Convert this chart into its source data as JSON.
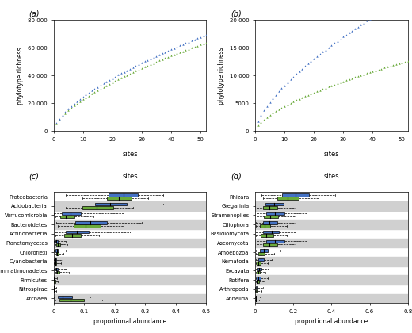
{
  "panel_a_label": "(a)",
  "panel_b_label": "(b)",
  "panel_c_label": "(c)",
  "panel_d_label": "(d)",
  "xlabel_sites": "sites",
  "xlabel_abundance": "proportional abundance",
  "ylabel_richness": "phylotype richness",
  "green_color": "#6aaa3a",
  "blue_color": "#4472c4",
  "gray_bg": "#d0d0d0",
  "bac_taxa": [
    "Proteobacteria",
    "Acidobacteria",
    "Verrucomicrobia",
    "Bacteroidetes",
    "Actinobacteria",
    "Planctomycetes",
    "Chloroflexi",
    "Cyanobacteria",
    "Gemmatimonadetes",
    "Firmicutes",
    "Nitrospirae",
    "Archaea"
  ],
  "euk_taxa": [
    "Rhizara",
    "Gregarinia",
    "Stramenopiles",
    "Ciliophora",
    "Basidiomycota",
    "Ascomycota",
    "Amoebozoa",
    "Nematoda",
    "Excavata",
    "Rotifera",
    "Arthropoda",
    "Annelida"
  ],
  "bac_green_wlo": [
    0.095,
    0.04,
    0.005,
    0.015,
    0.005,
    0.005,
    0.003,
    0.001,
    0.005,
    0.001,
    0.001,
    0.005
  ],
  "bac_green_q1": [
    0.175,
    0.095,
    0.022,
    0.065,
    0.035,
    0.01,
    0.008,
    0.003,
    0.008,
    0.002,
    0.001,
    0.02
  ],
  "bac_green_med": [
    0.215,
    0.14,
    0.04,
    0.105,
    0.06,
    0.015,
    0.012,
    0.005,
    0.012,
    0.003,
    0.002,
    0.055
  ],
  "bac_green_q3": [
    0.255,
    0.195,
    0.068,
    0.155,
    0.088,
    0.022,
    0.016,
    0.009,
    0.018,
    0.006,
    0.003,
    0.1
  ],
  "bac_green_whi": [
    0.31,
    0.26,
    0.13,
    0.23,
    0.15,
    0.045,
    0.032,
    0.025,
    0.05,
    0.015,
    0.008,
    0.16
  ],
  "bac_blue_wlo": [
    0.04,
    0.03,
    0.002,
    0.01,
    0.005,
    0.002,
    0.002,
    0.001,
    0.002,
    0.001,
    0.001,
    0.002
  ],
  "bac_blue_q1": [
    0.18,
    0.135,
    0.028,
    0.07,
    0.04,
    0.007,
    0.007,
    0.003,
    0.007,
    0.002,
    0.001,
    0.015
  ],
  "bac_blue_med": [
    0.23,
    0.185,
    0.055,
    0.12,
    0.075,
    0.01,
    0.011,
    0.005,
    0.01,
    0.002,
    0.002,
    0.03
  ],
  "bac_blue_q3": [
    0.275,
    0.24,
    0.09,
    0.175,
    0.115,
    0.015,
    0.015,
    0.008,
    0.015,
    0.004,
    0.003,
    0.06
  ],
  "bac_blue_whi": [
    0.36,
    0.36,
    0.23,
    0.29,
    0.25,
    0.04,
    0.04,
    0.03,
    0.04,
    0.012,
    0.01,
    0.12
  ],
  "euk_green_wlo": [
    0.04,
    0.01,
    0.01,
    0.005,
    0.005,
    0.008,
    0.003,
    0.002,
    0.003,
    0.002,
    0.001,
    0.001
  ],
  "euk_green_q1": [
    0.115,
    0.04,
    0.045,
    0.025,
    0.03,
    0.04,
    0.015,
    0.01,
    0.008,
    0.007,
    0.004,
    0.002
  ],
  "euk_green_med": [
    0.17,
    0.075,
    0.08,
    0.05,
    0.06,
    0.075,
    0.03,
    0.018,
    0.015,
    0.012,
    0.007,
    0.004
  ],
  "euk_green_q3": [
    0.23,
    0.115,
    0.12,
    0.08,
    0.095,
    0.115,
    0.05,
    0.03,
    0.025,
    0.02,
    0.011,
    0.007
  ],
  "euk_green_whi": [
    0.33,
    0.21,
    0.21,
    0.165,
    0.165,
    0.21,
    0.1,
    0.065,
    0.055,
    0.05,
    0.032,
    0.02
  ],
  "euk_blue_wlo": [
    0.035,
    0.008,
    0.008,
    0.004,
    0.004,
    0.008,
    0.003,
    0.002,
    0.003,
    0.002,
    0.001,
    0.001
  ],
  "euk_blue_q1": [
    0.14,
    0.055,
    0.06,
    0.04,
    0.04,
    0.06,
    0.025,
    0.016,
    0.012,
    0.01,
    0.005,
    0.003
  ],
  "euk_blue_med": [
    0.21,
    0.1,
    0.105,
    0.075,
    0.085,
    0.105,
    0.045,
    0.028,
    0.022,
    0.017,
    0.009,
    0.006
  ],
  "euk_blue_q3": [
    0.28,
    0.15,
    0.155,
    0.115,
    0.125,
    0.155,
    0.068,
    0.045,
    0.034,
    0.027,
    0.014,
    0.01
  ],
  "euk_blue_whi": [
    0.42,
    0.27,
    0.27,
    0.21,
    0.21,
    0.27,
    0.132,
    0.085,
    0.072,
    0.065,
    0.041,
    0.026
  ]
}
